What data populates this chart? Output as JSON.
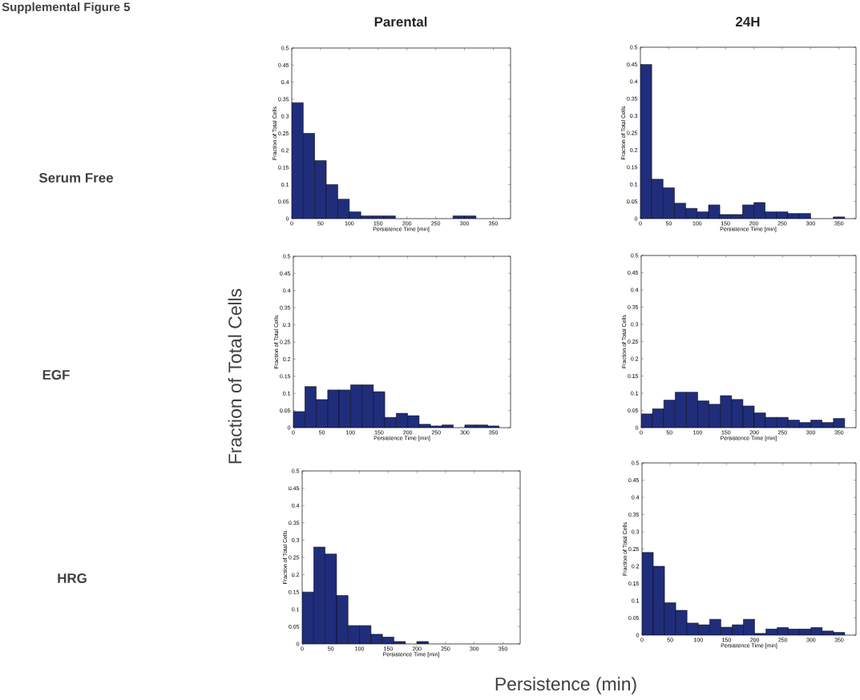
{
  "chart_data": [
    {
      "type": "histogram",
      "title": "Parental",
      "xlabel": "Persistence Time [min]",
      "ylabel": "Fraction of Total Cells",
      "color": "#1f2d7b",
      "annotations": [
        "Supplemental Figure 5",
        "Serum Free",
        "Fraction of Total Cells",
        "Persistence (min)"
      ],
      "bins": [
        0,
        20,
        40,
        60,
        80,
        100,
        120,
        140,
        160,
        180,
        200,
        220,
        240,
        260,
        280,
        300,
        320
      ],
      "values": [
        0.34,
        0.25,
        0.17,
        0.1,
        0.057,
        0.02,
        0.008,
        0.008,
        0.008,
        0,
        0,
        0,
        0,
        0,
        0.008,
        0.008
      ],
      "xlim": [
        0,
        380
      ],
      "xticks": [
        0,
        50,
        100,
        150,
        200,
        250,
        300,
        350
      ],
      "ylim": [
        0,
        0.5
      ],
      "yticks": [
        0,
        0.05,
        0.1,
        0.15,
        0.2,
        0.25,
        0.3,
        0.35,
        0.4,
        0.45,
        0.5
      ]
    },
    {
      "type": "histogram",
      "title": "24H",
      "xlabel": "Persistence Time [min]",
      "ylabel": "Fraction of Total Cells",
      "color": "#1f2d7b",
      "bins": [
        0,
        20,
        40,
        60,
        80,
        100,
        120,
        140,
        160,
        180,
        200,
        220,
        240,
        260,
        280,
        300,
        320,
        340,
        360
      ],
      "values": [
        0.45,
        0.115,
        0.09,
        0.045,
        0.03,
        0.02,
        0.04,
        0.012,
        0.012,
        0.04,
        0.047,
        0.02,
        0.02,
        0.015,
        0.015,
        0,
        0,
        0.005
      ],
      "xlim": [
        0,
        380
      ],
      "xticks": [
        0,
        50,
        100,
        150,
        200,
        250,
        300,
        350
      ],
      "ylim": [
        0,
        0.5
      ],
      "yticks": [
        0,
        0.05,
        0.1,
        0.15,
        0.2,
        0.25,
        0.3,
        0.35,
        0.4,
        0.45,
        0.5
      ]
    },
    {
      "type": "histogram",
      "xlabel": "Persistence Time [min]",
      "ylabel": "Fraction of Total Cells",
      "color": "#1f2d7b",
      "annotations": [
        "EGF"
      ],
      "bins": [
        0,
        20,
        40,
        60,
        80,
        100,
        120,
        140,
        160,
        180,
        200,
        220,
        240,
        260,
        280,
        300,
        320,
        340,
        360
      ],
      "values": [
        0.047,
        0.12,
        0.082,
        0.11,
        0.11,
        0.125,
        0.125,
        0.105,
        0.03,
        0.042,
        0.035,
        0.01,
        0.005,
        0.008,
        0,
        0.008,
        0.008,
        0.005
      ],
      "xlim": [
        0,
        380
      ],
      "xticks": [
        0,
        50,
        100,
        150,
        200,
        250,
        300,
        350
      ],
      "ylim": [
        0,
        0.5
      ],
      "yticks": [
        0,
        0.05,
        0.1,
        0.15,
        0.2,
        0.25,
        0.3,
        0.35,
        0.4,
        0.45,
        0.5
      ]
    },
    {
      "type": "histogram",
      "xlabel": "Persistence Time [min]",
      "ylabel": "Fraction of Total Cells",
      "color": "#1f2d7b",
      "bins": [
        0,
        20,
        40,
        60,
        80,
        100,
        120,
        140,
        160,
        180,
        200,
        220,
        240,
        260,
        280,
        300,
        320,
        340,
        360
      ],
      "values": [
        0.04,
        0.055,
        0.08,
        0.103,
        0.103,
        0.078,
        0.068,
        0.093,
        0.082,
        0.063,
        0.043,
        0.03,
        0.03,
        0.022,
        0.015,
        0.022,
        0.015,
        0.027
      ],
      "xlim": [
        0,
        380
      ],
      "xticks": [
        0,
        50,
        100,
        150,
        200,
        250,
        300,
        350
      ],
      "ylim": [
        0,
        0.5
      ],
      "yticks": [
        0,
        0.05,
        0.1,
        0.15,
        0.2,
        0.25,
        0.3,
        0.35,
        0.4,
        0.45,
        0.5
      ]
    },
    {
      "type": "histogram",
      "xlabel": "Persistence Time [min]",
      "ylabel": "Fraction of Total Cells",
      "color": "#1f2d7b",
      "annotations": [
        "HRG"
      ],
      "bins": [
        0,
        20,
        40,
        60,
        80,
        100,
        120,
        140,
        160,
        180,
        200,
        220
      ],
      "values": [
        0.15,
        0.28,
        0.26,
        0.14,
        0.053,
        0.053,
        0.028,
        0.02,
        0.007,
        0,
        0.007
      ],
      "xlim": [
        0,
        380
      ],
      "xticks": [
        0,
        50,
        100,
        150,
        200,
        250,
        300,
        350
      ],
      "ylim": [
        0,
        0.5
      ],
      "yticks": [
        0,
        0.05,
        0.1,
        0.15,
        0.2,
        0.25,
        0.3,
        0.35,
        0.4,
        0.45,
        0.5
      ]
    },
    {
      "type": "histogram",
      "xlabel": "Persistence Time [min]",
      "ylabel": "Fraction of Total Cells",
      "color": "#1f2d7b",
      "bins": [
        0,
        20,
        40,
        60,
        80,
        100,
        120,
        140,
        160,
        180,
        200,
        220,
        240,
        260,
        280,
        300,
        320,
        340,
        360
      ],
      "values": [
        0.24,
        0.2,
        0.094,
        0.072,
        0.035,
        0.03,
        0.046,
        0.023,
        0.03,
        0.046,
        0.005,
        0.018,
        0.022,
        0.018,
        0.018,
        0.022,
        0.012,
        0.008
      ],
      "xlim": [
        0,
        380
      ],
      "xticks": [
        0,
        50,
        100,
        150,
        200,
        250,
        300,
        350
      ],
      "ylim": [
        0,
        0.5
      ],
      "yticks": [
        0,
        0.05,
        0.1,
        0.15,
        0.2,
        0.25,
        0.3,
        0.35,
        0.4,
        0.45,
        0.5
      ]
    }
  ]
}
